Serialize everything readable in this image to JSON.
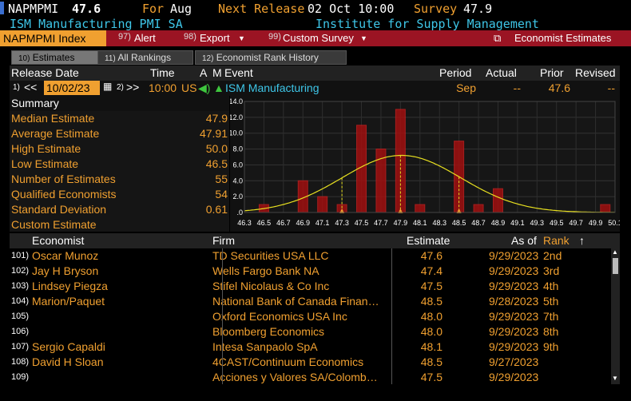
{
  "top": {
    "ticker": "NAPMPMI",
    "value": "47.6",
    "for_label": "For",
    "for_value": "Aug",
    "next_label": "Next Release",
    "next_value": "02 Oct 10:00",
    "survey_label": "Survey",
    "survey_value": "47.9",
    "name": "ISM Manufacturing PMI SA",
    "source": "Institute for Supply Management"
  },
  "toolbar": {
    "index": "NAPMPMI Index",
    "alert_num": "97)",
    "alert": "Alert",
    "export_num": "98)",
    "export": "Export",
    "custom_num": "99)",
    "custom": "Custom Survey",
    "econ": "Economist Estimates"
  },
  "tabs": [
    {
      "num": "10)",
      "label": "Estimates"
    },
    {
      "num": "11)",
      "label": "All Rankings"
    },
    {
      "num": "12)",
      "label": "Economist Rank History"
    }
  ],
  "header": {
    "release": "Release Date",
    "time": "Time",
    "a": "A",
    "m": "M",
    "event": "Event",
    "period": "Period",
    "actual": "Actual",
    "prior": "Prior",
    "revised": "Revised"
  },
  "release_row": {
    "prev_num": "1)",
    "date": "10/02/23",
    "next_num": "2)",
    "time": "10:00",
    "country": "US",
    "event": "ISM Manufacturing",
    "period": "Sep",
    "actual": "--",
    "prior": "47.6",
    "revised": "--"
  },
  "summary": {
    "title": "Summary",
    "rows": [
      {
        "label": "Median Estimate",
        "value": "47.9"
      },
      {
        "label": "Average Estimate",
        "value": "47.91"
      },
      {
        "label": "High Estimate",
        "value": "50.0"
      },
      {
        "label": "Low Estimate",
        "value": "46.5"
      },
      {
        "label": "Number of Estimates",
        "value": "55"
      },
      {
        "label": "Qualified Economists",
        "value": "54"
      },
      {
        "label": "Standard Deviation",
        "value": "0.61"
      },
      {
        "label": "Custom Estimate",
        "value": ""
      }
    ]
  },
  "chart_data": {
    "type": "bar",
    "ylim": [
      0,
      14
    ],
    "yticks": [
      "14.0",
      "12.0",
      "10.0",
      "8.0",
      "6.0",
      "4.0",
      "2.0",
      ".0"
    ],
    "xlim": [
      46.3,
      50.1
    ],
    "xticks": [
      "46.3",
      "46.5",
      "46.7",
      "46.9",
      "47.1",
      "47.3",
      "47.5",
      "47.7",
      "47.9",
      "48.1",
      "48.3",
      "48.5",
      "48.7",
      "48.9",
      "49.1",
      "49.3",
      "49.5",
      "49.7",
      "49.9",
      "50.1"
    ],
    "bins": [
      {
        "x": 46.5,
        "value": 1
      },
      {
        "x": 46.9,
        "value": 4
      },
      {
        "x": 47.1,
        "value": 2
      },
      {
        "x": 47.3,
        "value": 1
      },
      {
        "x": 47.5,
        "value": 11
      },
      {
        "x": 47.7,
        "value": 8
      },
      {
        "x": 47.9,
        "value": 13
      },
      {
        "x": 48.1,
        "value": 1
      },
      {
        "x": 48.5,
        "value": 9
      },
      {
        "x": 48.7,
        "value": 1
      },
      {
        "x": 48.9,
        "value": 3
      },
      {
        "x": 50.0,
        "value": 1
      }
    ],
    "markers": [
      47.3,
      47.9,
      48.5
    ],
    "curve": {
      "mean": 47.91,
      "sd": 0.61,
      "peak": 7.2
    },
    "colors": {
      "bar": "#a01010",
      "bar_edge": "#c02020",
      "curve": "#e8e020",
      "marker": "#f0a030"
    }
  },
  "table": {
    "headers": {
      "economist": "Economist",
      "firm": "Firm",
      "estimate": "Estimate",
      "asof": "As of",
      "rank": "Rank",
      "sort": "↑"
    },
    "rows": [
      {
        "num": "101)",
        "name": "Oscar Munoz",
        "firm": "TD Securities USA LLC",
        "estimate": "47.6",
        "asof": "9/29/2023",
        "rank": "2nd"
      },
      {
        "num": "102)",
        "name": "Jay H Bryson",
        "firm": "Wells Fargo Bank NA",
        "estimate": "47.4",
        "asof": "9/29/2023",
        "rank": "3rd"
      },
      {
        "num": "103)",
        "name": "Lindsey Piegza",
        "firm": "Stifel Nicolaus & Co Inc",
        "estimate": "47.5",
        "asof": "9/29/2023",
        "rank": "4th"
      },
      {
        "num": "104)",
        "name": "Marion/Paquet",
        "firm": "National Bank of Canada Finan…",
        "estimate": "48.5",
        "asof": "9/28/2023",
        "rank": "5th"
      },
      {
        "num": "105)",
        "name": "",
        "firm": "Oxford Economics USA Inc",
        "estimate": "48.0",
        "asof": "9/29/2023",
        "rank": "7th"
      },
      {
        "num": "106)",
        "name": "",
        "firm": "Bloomberg Economics",
        "estimate": "48.0",
        "asof": "9/29/2023",
        "rank": "8th"
      },
      {
        "num": "107)",
        "name": "Sergio Capaldi",
        "firm": "Intesa Sanpaolo SpA",
        "estimate": "48.1",
        "asof": "9/29/2023",
        "rank": "9th"
      },
      {
        "num": "108)",
        "name": "David H Sloan",
        "firm": "4CAST/Continuum Economics",
        "estimate": "48.5",
        "asof": "9/27/2023",
        "rank": ""
      },
      {
        "num": "109)",
        "name": "",
        "firm": "Acciones y Valores SA/Colomb…",
        "estimate": "47.5",
        "asof": "9/29/2023",
        "rank": ""
      }
    ]
  }
}
